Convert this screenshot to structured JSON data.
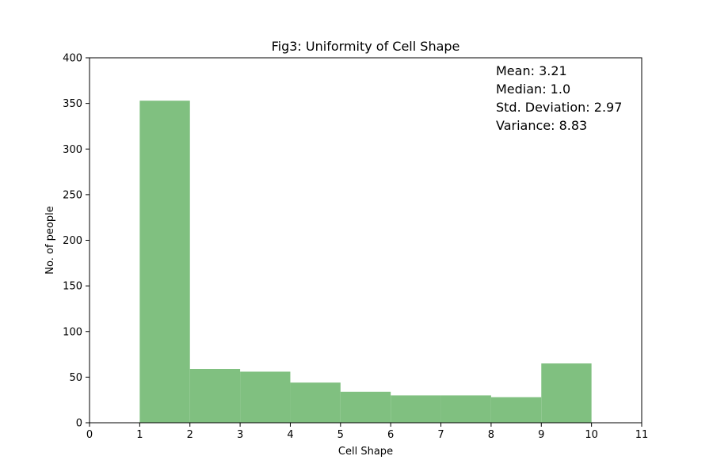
{
  "chart_data": {
    "type": "bar",
    "title": "Fig3: Uniformity of Cell Shape",
    "xlabel": "Cell Shape",
    "ylabel": "No. of people",
    "xlim": [
      0,
      11
    ],
    "ylim": [
      0,
      400
    ],
    "xticks": [
      0,
      1,
      2,
      3,
      4,
      5,
      6,
      7,
      8,
      9,
      10,
      11
    ],
    "yticks": [
      0,
      50,
      100,
      150,
      200,
      250,
      300,
      350,
      400
    ],
    "bins": [
      {
        "x0": 1,
        "x1": 2,
        "count": 353
      },
      {
        "x0": 2,
        "x1": 3,
        "count": 59
      },
      {
        "x0": 3,
        "x1": 4,
        "count": 56
      },
      {
        "x0": 4,
        "x1": 5,
        "count": 44
      },
      {
        "x0": 5,
        "x1": 6,
        "count": 34
      },
      {
        "x0": 6,
        "x1": 7,
        "count": 30
      },
      {
        "x0": 7,
        "x1": 8,
        "count": 30
      },
      {
        "x0": 8,
        "x1": 9,
        "count": 28
      },
      {
        "x0": 9,
        "x1": 10,
        "count": 65
      }
    ],
    "bar_color": "#80c080",
    "grid": false,
    "annotations": [
      "Mean: 3.21",
      "Median: 1.0",
      "Std. Deviation: 2.97",
      "Variance: 8.83"
    ]
  }
}
